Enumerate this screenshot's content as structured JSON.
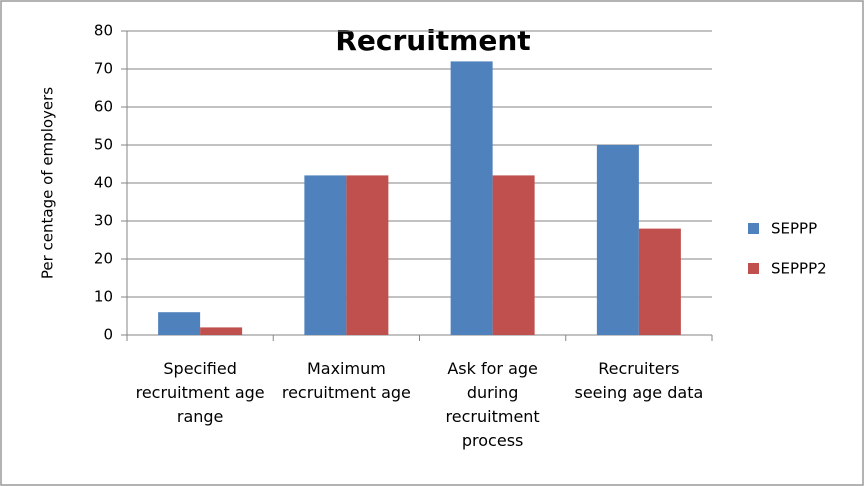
{
  "chart_data": {
    "type": "bar",
    "title": "Recruitment",
    "y_label": "Per centage of employers",
    "categories": [
      "Specified recruitment age range",
      "Maximum recruitment age",
      "Ask for age during recruitment process",
      "Recruiters seeing age data"
    ],
    "series": [
      {
        "name": "SEPPP",
        "color": "#4f81bd",
        "values": [
          6,
          42,
          72,
          50
        ]
      },
      {
        "name": "SEPPP2",
        "color": "#c0504d",
        "values": [
          2,
          42,
          42,
          28
        ]
      }
    ],
    "ylim": [
      0,
      80
    ],
    "yticks": [
      0,
      10,
      20,
      30,
      40,
      50,
      60,
      70,
      80
    ],
    "grid": true,
    "legend": "right"
  }
}
